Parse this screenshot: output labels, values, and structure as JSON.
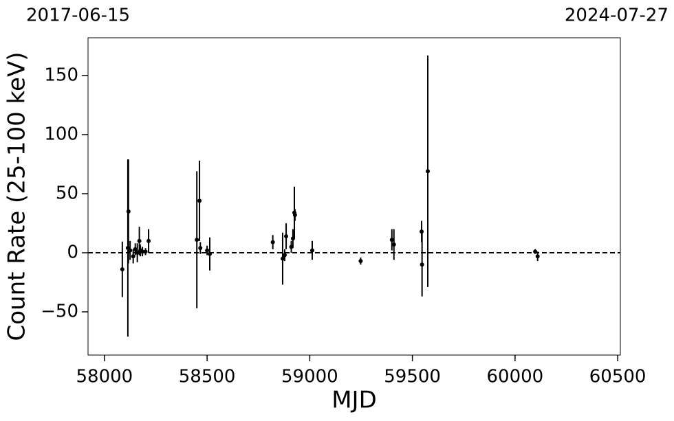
{
  "chart_data": {
    "type": "errorbar",
    "top_left_label": "2017-06-15",
    "top_right_label": "2024-07-27",
    "xlabel": "MJD",
    "ylabel": "Count Rate (25-100 keV)",
    "xlim": [
      57920,
      60513
    ],
    "ylim": [
      -86.6,
      182
    ],
    "xticks": [
      58000,
      58500,
      59000,
      59500,
      60000,
      60500
    ],
    "yticks": [
      {
        "value": -50,
        "label": "−50"
      },
      0,
      50,
      100,
      150
    ],
    "hline": 0,
    "color": "#000000",
    "x": [
      58087,
      58114,
      58117,
      58125,
      58140,
      58150,
      58160,
      58170,
      58175,
      58185,
      58200,
      58215,
      58450,
      58463,
      58467,
      58500,
      58513,
      58820,
      58868,
      58878,
      58885,
      58910,
      58918,
      58925,
      58928,
      59012,
      59248,
      59400,
      59410,
      59545,
      59547,
      59575,
      60098,
      60110
    ],
    "values": [
      -14,
      4,
      35,
      2,
      -3,
      3,
      0,
      10,
      2,
      1,
      1,
      10,
      11,
      44,
      4,
      2,
      -1,
      9,
      -5,
      -2,
      14,
      5,
      12,
      34,
      32,
      2,
      -7,
      11,
      7,
      18,
      -10,
      69,
      1,
      -3
    ],
    "errors": [
      23.5,
      75,
      44,
      8,
      6,
      5,
      8,
      12,
      5,
      4,
      3,
      10,
      58,
      34,
      5,
      4,
      14,
      6,
      22,
      5,
      11,
      5,
      8,
      22,
      5,
      8,
      3,
      9,
      13,
      9,
      27,
      98,
      2,
      4
    ]
  }
}
